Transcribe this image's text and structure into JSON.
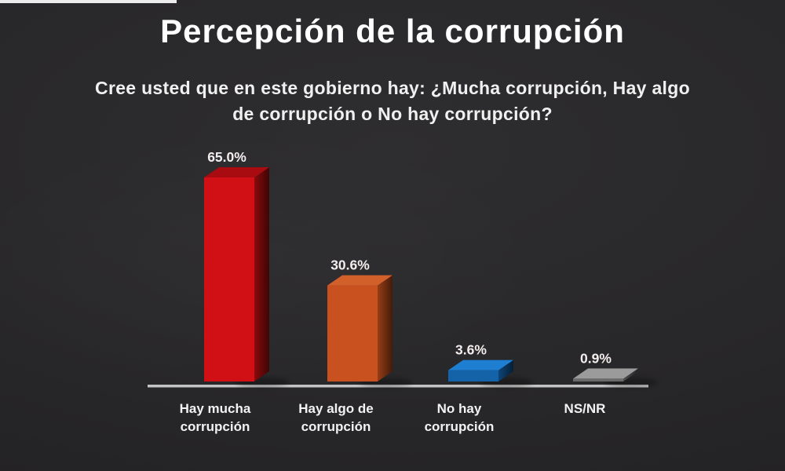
{
  "page": {
    "subtitle_lines": [
      "Cree usted que en este gobierno hay: ¿Mucha corrupción, Hay algo",
      "de corrupción o No hay corrupción?"
    ]
  },
  "chart_data": {
    "type": "bar",
    "style": "3d-column",
    "title": "Percepción de la corrupción",
    "subtitle": "Cree usted que en este gobierno hay: ¿Mucha corrupción, Hay algo de corrupción o No hay corrupción?",
    "xlabel": "",
    "ylabel": "",
    "ylim": [
      0,
      70
    ],
    "grid": false,
    "legend": false,
    "value_suffix": "%",
    "categories": [
      "Hay mucha corrupción",
      "Hay algo de corrupción",
      "No hay corrupción",
      "NS/NR"
    ],
    "category_lines": [
      [
        "Hay mucha",
        "corrupción"
      ],
      [
        "Hay algo de",
        "corrupción"
      ],
      [
        "No hay",
        "corrupción"
      ],
      [
        "NS/NR"
      ]
    ],
    "values": [
      65.0,
      30.6,
      3.6,
      0.9
    ],
    "bars": [
      {
        "category": "Hay mucha corrupción",
        "value": 65.0,
        "label": "65.0%",
        "color_front": "#d01014",
        "color_top": "#a90c10",
        "color_side": "#8a0a0c"
      },
      {
        "category": "Hay algo de corrupción",
        "value": 30.6,
        "label": "30.6%",
        "color_front": "#c8511f",
        "color_top": "#d2602b",
        "color_side": "#963d16"
      },
      {
        "category": "No hay corrupción",
        "value": 3.6,
        "label": "3.6%",
        "color_front": "#1462a8",
        "color_top": "#1e7fd2",
        "color_side": "#0d4578"
      },
      {
        "category": "NS/NR",
        "value": 0.9,
        "label": "0.9%",
        "color_front": "#6a6a6a",
        "color_top": "#9b9b9b",
        "color_side": "#4f4f4f"
      }
    ],
    "colors": {
      "background": "#272628",
      "title_text": "#ffffff",
      "subtitle_text": "#f0f0f0",
      "value_label_text": "#f3eded",
      "category_text": "#f2f2f2",
      "baseline": "#c4c4c4"
    }
  }
}
